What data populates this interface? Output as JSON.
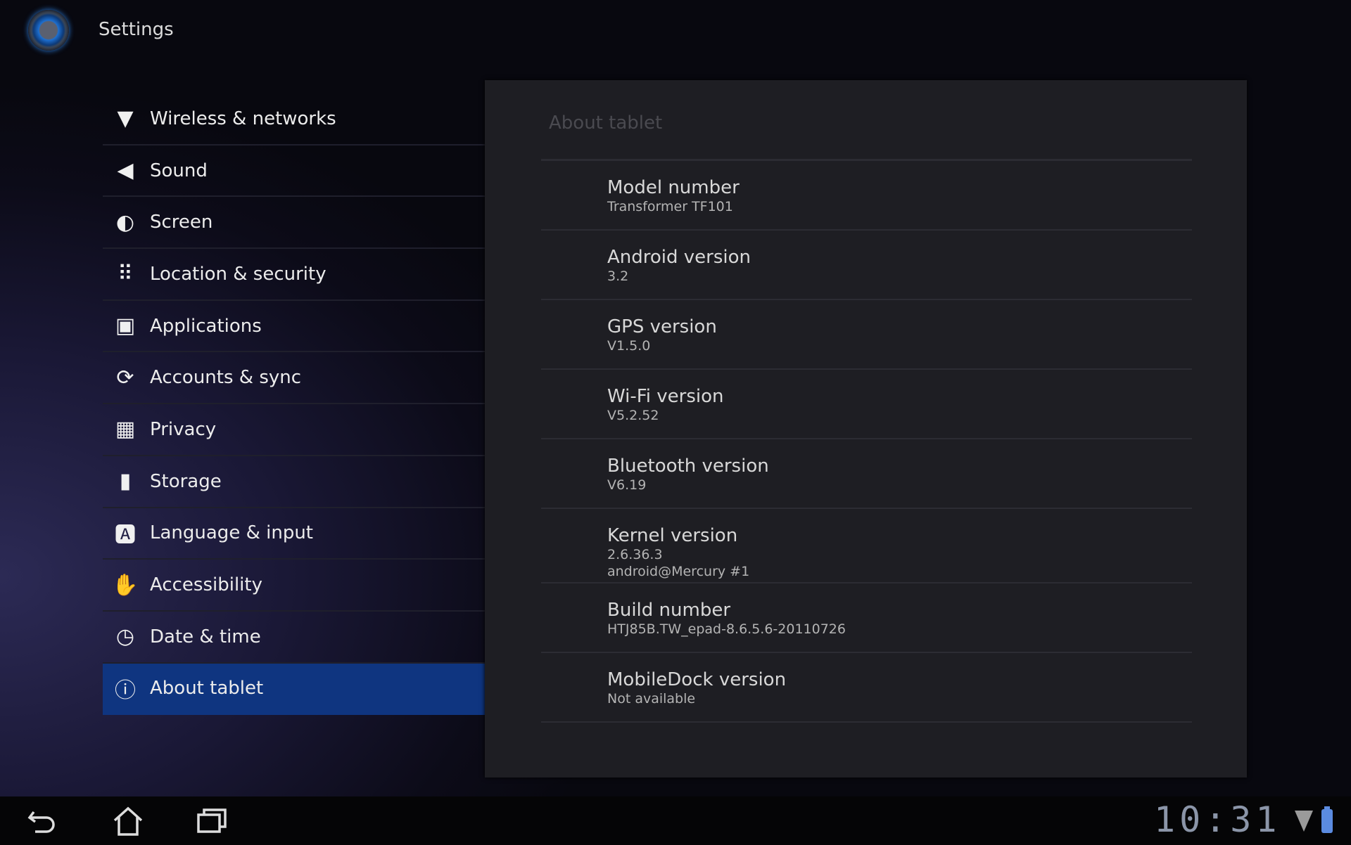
{
  "app": {
    "title": "Settings",
    "logo": "settings-app-icon"
  },
  "sidebar": {
    "items": [
      {
        "label": "Wireless & networks",
        "icon": "wifi-icon"
      },
      {
        "label": "Sound",
        "icon": "speaker-icon"
      },
      {
        "label": "Screen",
        "icon": "brightness-icon"
      },
      {
        "label": "Location & security",
        "icon": "grid-lock-icon"
      },
      {
        "label": "Applications",
        "icon": "applications-icon"
      },
      {
        "label": "Accounts & sync",
        "icon": "sync-icon"
      },
      {
        "label": "Privacy",
        "icon": "privacy-icon"
      },
      {
        "label": "Storage",
        "icon": "sd-card-icon"
      },
      {
        "label": "Language & input",
        "icon": "keyboard-letter-icon"
      },
      {
        "label": "Accessibility",
        "icon": "hand-icon"
      },
      {
        "label": "Date & time",
        "icon": "clock-icon"
      },
      {
        "label": "About tablet",
        "icon": "info-icon",
        "selected": true
      }
    ],
    "selected_color": "#0f3580"
  },
  "panel": {
    "title": "About tablet",
    "rows": [
      {
        "title": "Model number",
        "value": "Transformer TF101"
      },
      {
        "title": "Android version",
        "value": "3.2"
      },
      {
        "title": "GPS version",
        "value": "V1.5.0"
      },
      {
        "title": "Wi-Fi version",
        "value": "V5.2.52"
      },
      {
        "title": "Bluetooth version",
        "value": "V6.19"
      },
      {
        "title": "Kernel version",
        "value": "2.6.36.3",
        "value2": "android@Mercury #1"
      },
      {
        "title": "Build number",
        "value": "HTJ85B.TW_epad-8.6.5.6-20110726"
      },
      {
        "title": "MobileDock version",
        "value": "Not available"
      }
    ]
  },
  "navbar": {
    "time": "10:31",
    "buttons": [
      "back-icon",
      "home-icon",
      "recent-apps-icon"
    ],
    "battery_color": "#5b8be0"
  }
}
